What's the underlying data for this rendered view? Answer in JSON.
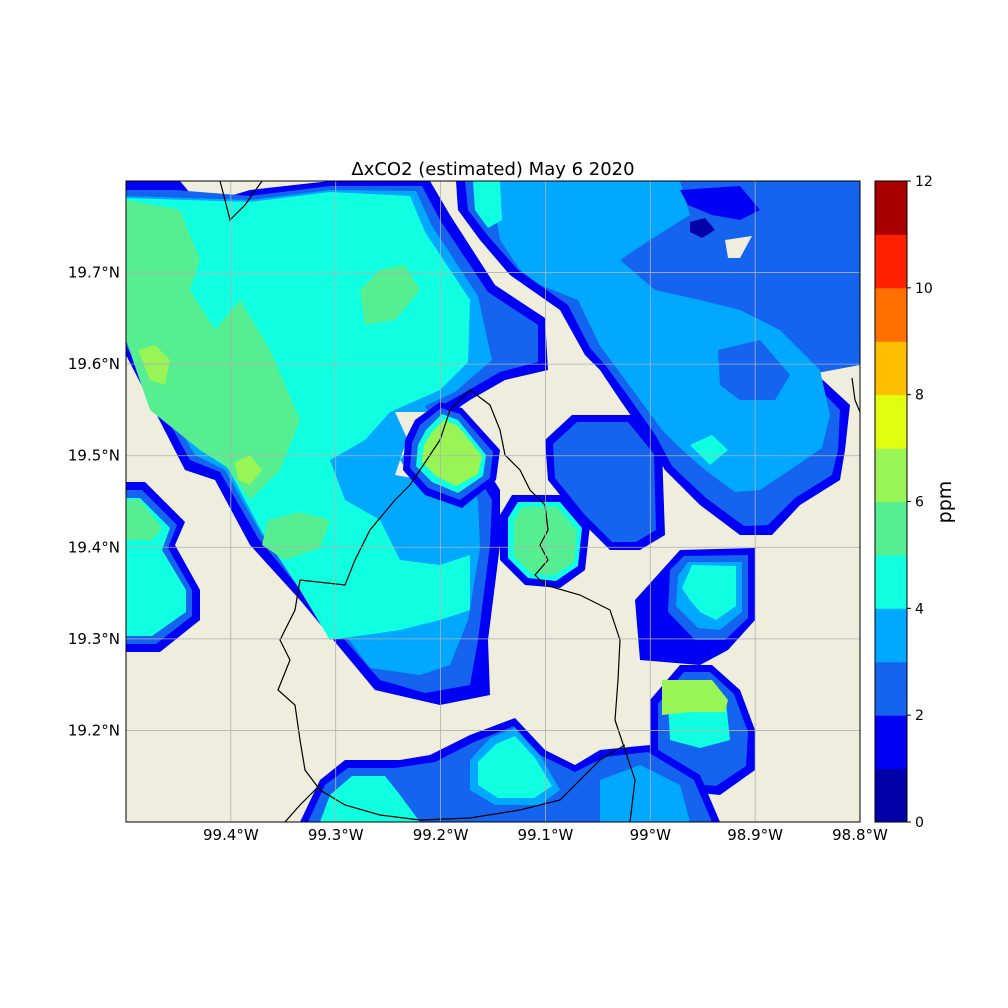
{
  "title": "ΔxCO2 (estimated) May 6 2020",
  "map": {
    "lon_range": [
      -99.5,
      -98.8
    ],
    "lat_range": [
      19.1,
      19.8
    ],
    "lon_ticks": [
      {
        "value": -99.4,
        "label": "99.4°W"
      },
      {
        "value": -99.3,
        "label": "99.3°W"
      },
      {
        "value": -99.2,
        "label": "99.2°W"
      },
      {
        "value": -99.1,
        "label": "99.1°W"
      },
      {
        "value": -99.0,
        "label": "99°W"
      },
      {
        "value": -98.9,
        "label": "98.9°W"
      },
      {
        "value": -98.8,
        "label": "98.8°W"
      }
    ],
    "lat_ticks": [
      {
        "value": 19.7,
        "label": "19.7°N"
      },
      {
        "value": 19.6,
        "label": "19.6°N"
      },
      {
        "value": 19.5,
        "label": "19.5°N"
      },
      {
        "value": 19.4,
        "label": "19.4°N"
      },
      {
        "value": 19.3,
        "label": "19.3°N"
      },
      {
        "value": 19.2,
        "label": "19.2°N"
      }
    ],
    "land_color": "#efedde",
    "grid": true
  },
  "colorbar": {
    "label": "ppm",
    "min": 0,
    "max": 12,
    "tick_labels": [
      "0",
      "2",
      "4",
      "6",
      "8",
      "10",
      "12"
    ],
    "colors": [
      "#0000a8",
      "#0000f5",
      "#1464f0",
      "#00a8ff",
      "#10ffe0",
      "#55ee90",
      "#98f555",
      "#e0ff10",
      "#ffbe00",
      "#ff7000",
      "#ff2000",
      "#a80000"
    ]
  },
  "legend_levels": {
    "dark_blue": "#0000f5",
    "mid_blue": "#1464f0",
    "light_blue": "#00a8ff",
    "cyan": "#10ffe0",
    "sea_green": "#55ee90",
    "lime": "#98f555"
  }
}
